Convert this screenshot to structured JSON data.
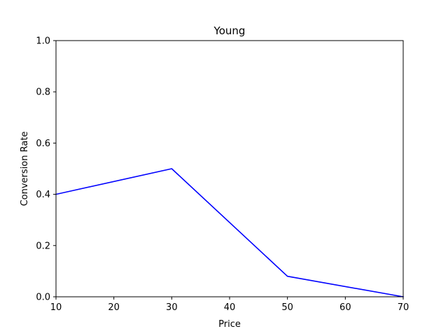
{
  "chart_data": {
    "type": "line",
    "title": "Young",
    "xlabel": "Price",
    "ylabel": "Conversion Rate",
    "xlim": [
      10,
      70
    ],
    "ylim": [
      0.0,
      1.0
    ],
    "x_ticks": [
      "10",
      "20",
      "30",
      "40",
      "50",
      "60",
      "70"
    ],
    "y_ticks": [
      "0.0",
      "0.2",
      "0.4",
      "0.6",
      "0.8",
      "1.0"
    ],
    "grid": false,
    "legend": "none",
    "series": [
      {
        "x": [
          10,
          30,
          50,
          70
        ],
        "values": [
          0.4,
          0.5,
          0.08,
          0.0
        ],
        "color": "#0000ff"
      }
    ]
  }
}
